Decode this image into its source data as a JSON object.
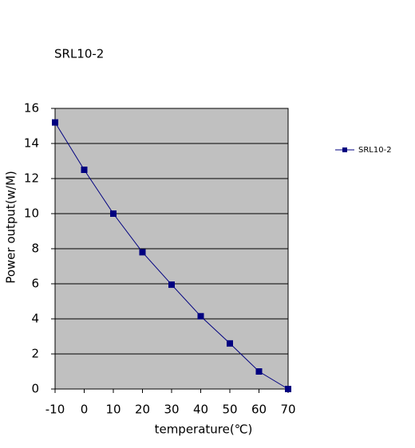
{
  "chart_data": {
    "type": "line",
    "title": "SRL10-2",
    "x_label": "temperature(℃)",
    "y_label": "Power output(w/M)",
    "x": [
      -10,
      0,
      10,
      20,
      30,
      40,
      50,
      60,
      70
    ],
    "series": [
      {
        "name": "SRL10-2",
        "color": "#000080",
        "values": [
          15.2,
          12.5,
          10,
          7.8,
          5.95,
          4.15,
          2.6,
          1.0,
          0
        ]
      }
    ],
    "xlim": [
      -10,
      70
    ],
    "xticks": [
      -10,
      0,
      10,
      20,
      30,
      40,
      50,
      60,
      70
    ],
    "ylim": [
      0,
      16
    ],
    "yticks": [
      0,
      2,
      4,
      6,
      8,
      10,
      12,
      14,
      16
    ],
    "grid": true,
    "legend": "right",
    "plot_background": "#c0c0c0"
  }
}
